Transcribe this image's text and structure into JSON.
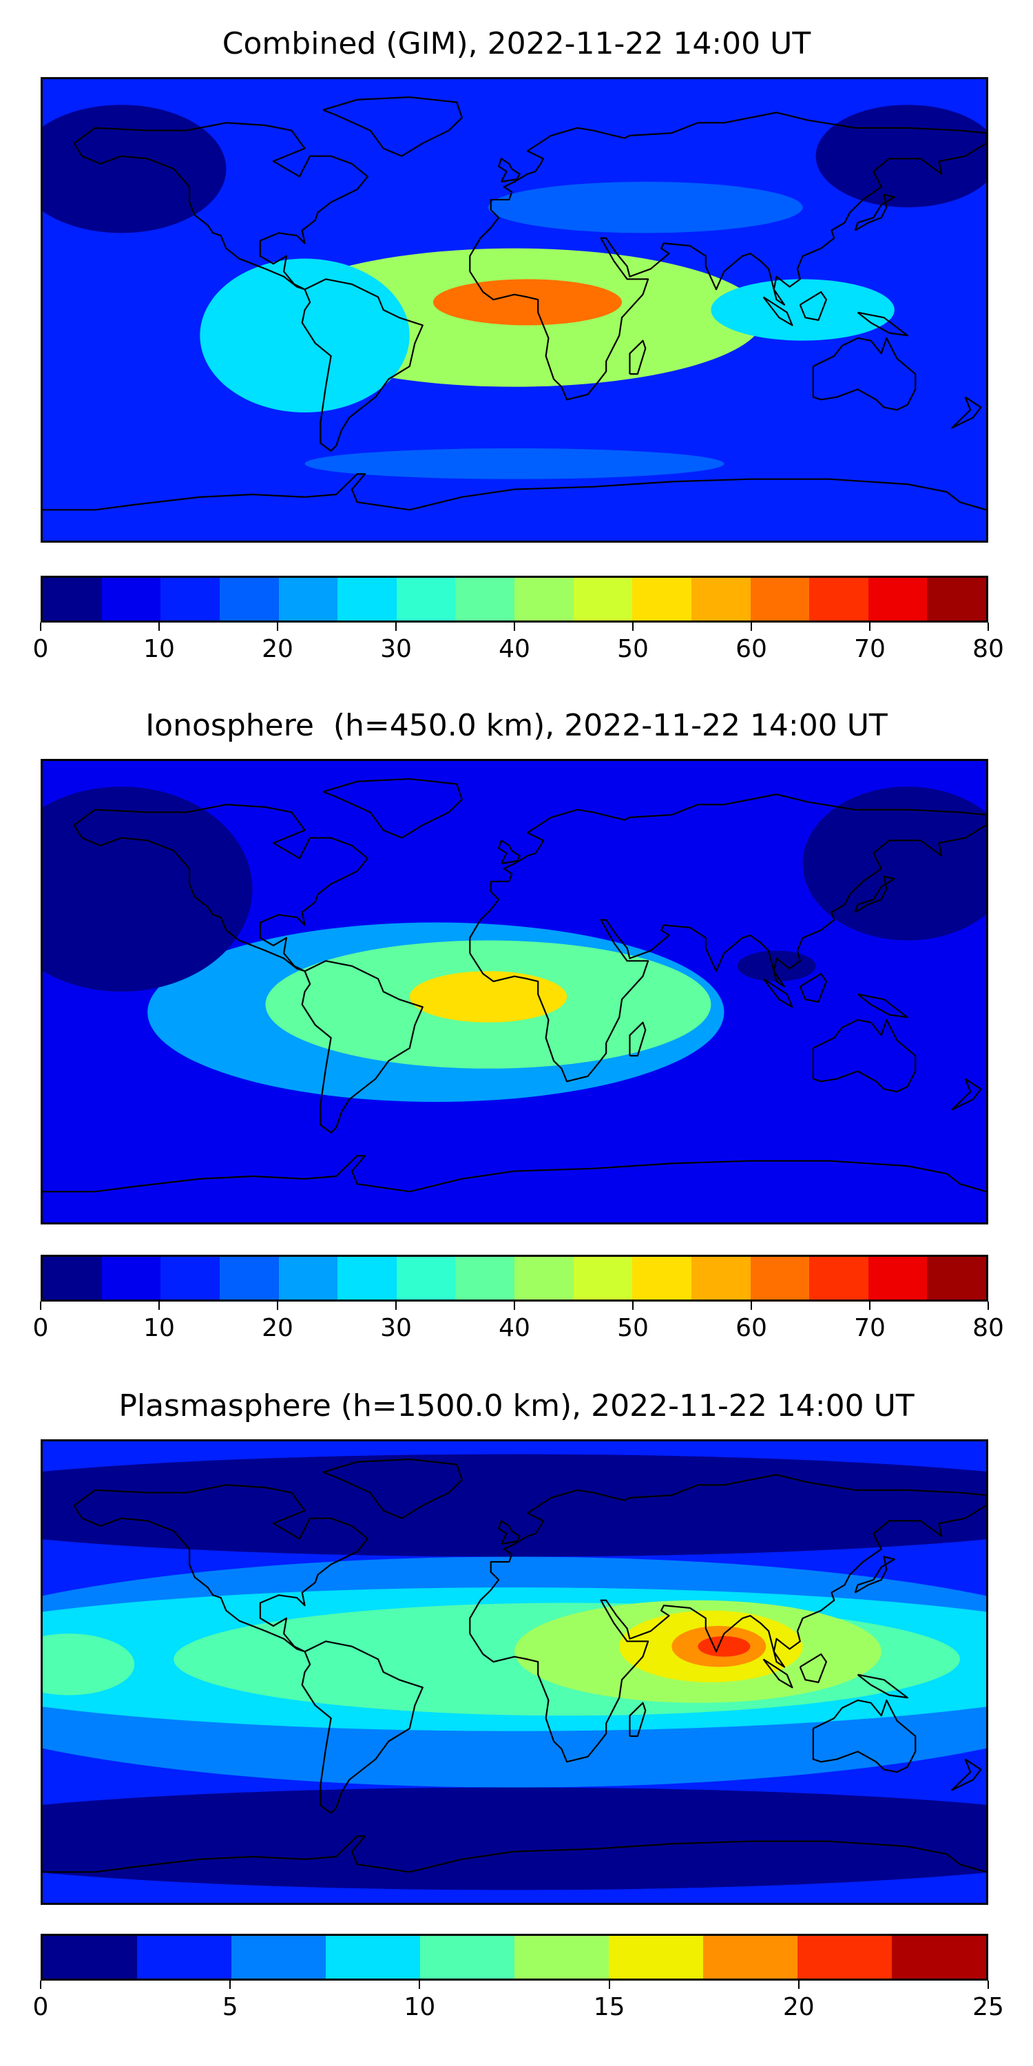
{
  "maps": [
    {
      "id": "combined",
      "title": "Combined (GIM), 2022-11-22 14:00 UT",
      "colorbar": {
        "min": 0,
        "max": 80,
        "tick_labels": [
          "0",
          "10",
          "20",
          "30",
          "40",
          "50",
          "60",
          "70",
          "80"
        ],
        "colors": [
          "#00008f",
          "#0000ef",
          "#0020ff",
          "#0060ff",
          "#00a0ff",
          "#00e0ff",
          "#30ffd0",
          "#60ff9f",
          "#a0ff60",
          "#d0ff30",
          "#ffe000",
          "#ffb000",
          "#ff7000",
          "#ff3000",
          "#ef0000",
          "#9f0000"
        ]
      },
      "field": {
        "background_level": 2,
        "features": [
          {
            "lon": 5,
            "lat": 3,
            "level": 12,
            "rx": 36,
            "ry": 9
          },
          {
            "lon": 0,
            "lat": -3,
            "level": 8,
            "rx": 95,
            "ry": 27
          },
          {
            "lon": -80,
            "lat": -10,
            "level": 5,
            "rx": 40,
            "ry": 30
          },
          {
            "lon": 110,
            "lat": 0,
            "level": 5,
            "rx": 35,
            "ry": 12
          },
          {
            "lon": 50,
            "lat": 40,
            "level": 3,
            "rx": 60,
            "ry": 10
          },
          {
            "lon": -150,
            "lat": 55,
            "level": 0,
            "rx": 40,
            "ry": 25
          },
          {
            "lon": 150,
            "lat": 60,
            "level": 0,
            "rx": 35,
            "ry": 20
          },
          {
            "lon": 0,
            "lat": -60,
            "level": 3,
            "rx": 80,
            "ry": 6
          }
        ]
      }
    },
    {
      "id": "ionosphere",
      "title": "Ionosphere  (h=450.0 km), 2022-11-22 14:00 UT",
      "colorbar": {
        "min": 0,
        "max": 80,
        "tick_labels": [
          "0",
          "10",
          "20",
          "30",
          "40",
          "50",
          "60",
          "70",
          "80"
        ],
        "colors": [
          "#00008f",
          "#0000ef",
          "#0020ff",
          "#0060ff",
          "#00a0ff",
          "#00e0ff",
          "#30ffd0",
          "#60ff9f",
          "#a0ff60",
          "#d0ff30",
          "#ffe000",
          "#ffb000",
          "#ff7000",
          "#ff3000",
          "#ef0000",
          "#9f0000"
        ]
      },
      "field": {
        "background_level": 1,
        "features": [
          {
            "lon": -10,
            "lat": -2,
            "level": 10,
            "rx": 30,
            "ry": 10
          },
          {
            "lon": -10,
            "lat": -5,
            "level": 7,
            "rx": 85,
            "ry": 25
          },
          {
            "lon": -30,
            "lat": -8,
            "level": 4,
            "rx": 110,
            "ry": 35
          },
          {
            "lon": 100,
            "lat": 10,
            "level": 0,
            "rx": 15,
            "ry": 6
          },
          {
            "lon": -150,
            "lat": 40,
            "level": 0,
            "rx": 50,
            "ry": 40
          },
          {
            "lon": 150,
            "lat": 50,
            "level": 0,
            "rx": 40,
            "ry": 30
          }
        ]
      }
    },
    {
      "id": "plasmasphere",
      "title": "Plasmasphere (h=1500.0 km), 2022-11-22 14:00 UT",
      "colorbar": {
        "min": 0,
        "max": 25,
        "tick_labels": [
          "0",
          "5",
          "10",
          "15",
          "20",
          "25"
        ],
        "colors": [
          "#00008f",
          "#0020ff",
          "#0080ff",
          "#00e0ff",
          "#50ffb0",
          "#a0ff60",
          "#f0f000",
          "#ff9000",
          "#ff3000",
          "#af0000"
        ]
      },
      "field": {
        "background_level": 1,
        "features": [
          {
            "lon": 80,
            "lat": 10,
            "level": 8,
            "rx": 10,
            "ry": 4
          },
          {
            "lon": 78,
            "lat": 10,
            "level": 7,
            "rx": 18,
            "ry": 8
          },
          {
            "lon": 75,
            "lat": 10,
            "level": 6,
            "rx": 35,
            "ry": 14
          },
          {
            "lon": 70,
            "lat": 8,
            "level": 5,
            "rx": 70,
            "ry": 20
          },
          {
            "lon": 20,
            "lat": 5,
            "level": 4,
            "rx": 150,
            "ry": 22
          },
          {
            "lon": -170,
            "lat": 3,
            "level": 4,
            "rx": 25,
            "ry": 12
          },
          {
            "lon": 0,
            "lat": 5,
            "level": 3,
            "rx": 240,
            "ry": 28
          },
          {
            "lon": 0,
            "lat": 0,
            "level": 2,
            "rx": 240,
            "ry": 45
          },
          {
            "lon": 0,
            "lat": 65,
            "level": 0,
            "rx": 240,
            "ry": 20
          },
          {
            "lon": 0,
            "lat": -65,
            "level": 0,
            "rx": 240,
            "ry": 20
          }
        ]
      }
    }
  ],
  "coastline_icon": "world-coastline-icon"
}
